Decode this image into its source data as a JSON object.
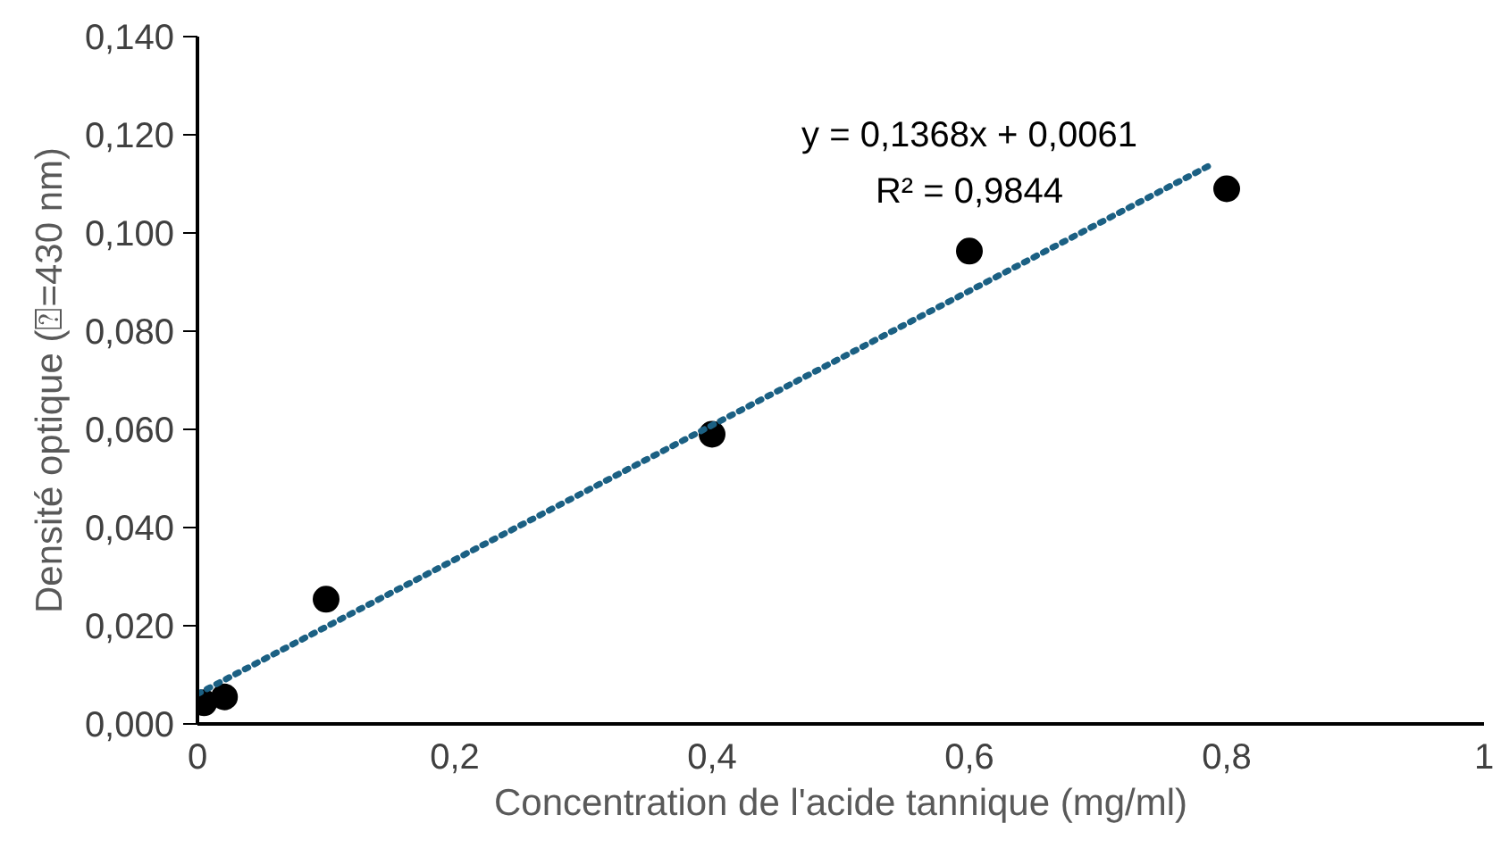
{
  "chart_data": {
    "type": "scatter",
    "xlabel": "Concentration de l'acide tannique (mg/ml)",
    "ylabel": "Densité optique (⍰=430 nm)",
    "series": [
      {
        "color": "#000000",
        "x": [
          0.005,
          0.021,
          0.1,
          0.4,
          0.6,
          0.8
        ],
        "values": [
          0.0043,
          0.0055,
          0.0254,
          0.059,
          0.0963,
          0.109
        ],
        "marker": "circle"
      },
      {
        "type": "line",
        "color": "#1b6083",
        "x": [
          0,
          0.79
        ],
        "values": [
          0.0061,
          0.1142
        ],
        "line_style": "dotted"
      }
    ],
    "xlim": [
      0,
      1
    ],
    "ylim": [
      0,
      0.14
    ],
    "xticks": [
      0,
      {
        "value": 0.2,
        "label": "0,2"
      },
      {
        "value": 0.4,
        "label": "0,4"
      },
      {
        "value": 0.6,
        "label": "0,6"
      },
      {
        "value": 0.8,
        "label": "0,8"
      },
      1
    ],
    "yticks": [
      {
        "value": 0,
        "label": "0,000"
      },
      {
        "value": 0.02,
        "label": "0,020"
      },
      {
        "value": 0.04,
        "label": "0,040"
      },
      {
        "value": 0.06,
        "label": "0,060"
      },
      {
        "value": 0.08,
        "label": "0,080"
      },
      {
        "value": 0.1,
        "label": "0,100"
      },
      {
        "value": 0.12,
        "label": "0,120"
      },
      {
        "value": 0.14,
        "label": "0,140"
      }
    ],
    "annotations": [
      "y = 0,1368x + 0,0061",
      "R² = 0,9844"
    ],
    "grid": false
  }
}
